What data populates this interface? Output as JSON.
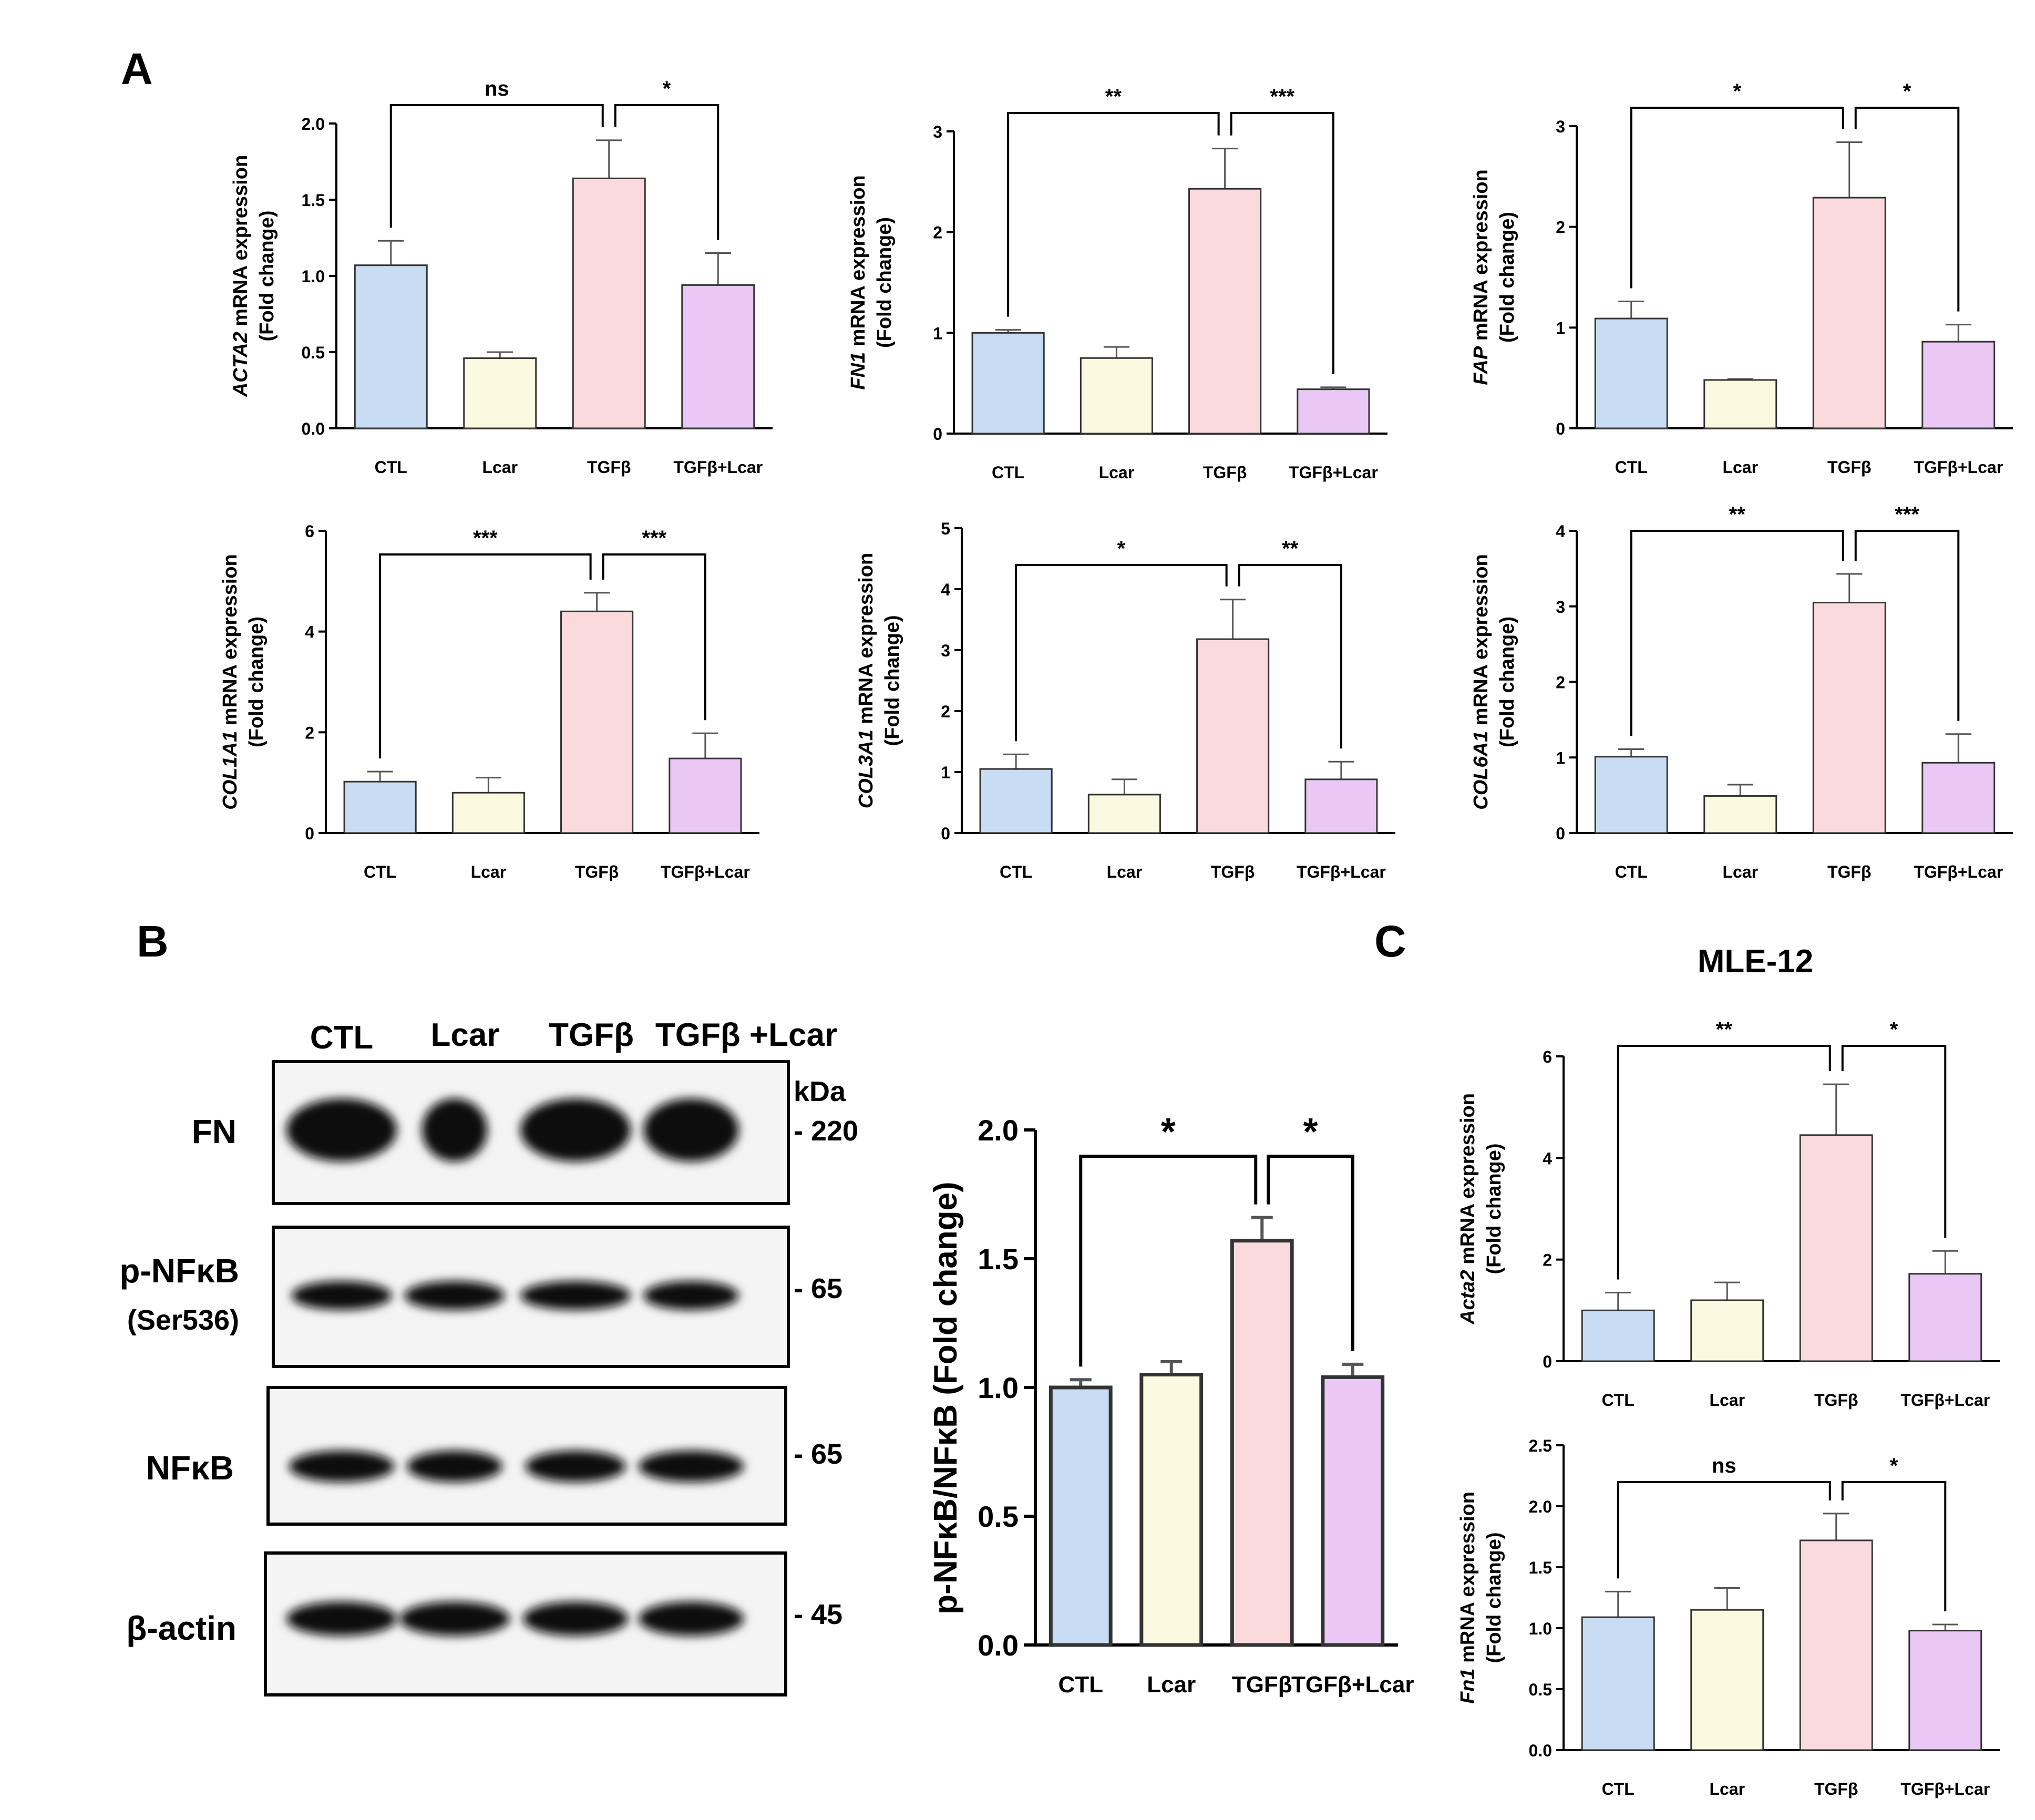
{
  "figure": {
    "panel_labels": {
      "a": "A",
      "b": "B",
      "c": "C"
    },
    "colors": {
      "CTL": "#c8dcf4",
      "Lcar": "#fbfae0",
      "TGFb": "#fadadd",
      "TGFbLcar": "#e9c8f5"
    }
  },
  "chart_data": [
    {
      "id": "A1",
      "type": "bar",
      "gene": "ACTA2",
      "ylabel_rest": " mRNA expression",
      "ylabel2": "(Fold change)",
      "categories": [
        "CTL",
        "Lcar",
        "TGFβ",
        "TGFβ+Lcar"
      ],
      "values": [
        1.07,
        0.46,
        1.64,
        0.94
      ],
      "errors": [
        0.16,
        0.04,
        0.25,
        0.21
      ],
      "yticks": [
        "0.0",
        "0.5",
        "1.0",
        "1.5",
        "2.0"
      ],
      "ylim": [
        0,
        2.0
      ],
      "significance": [
        {
          "from": 0,
          "to": 2,
          "label": "ns"
        },
        {
          "from": 2,
          "to": 3,
          "label": "*"
        }
      ]
    },
    {
      "id": "A2",
      "type": "bar",
      "gene": "FN1",
      "ylabel_rest": " mRNA expression",
      "ylabel2": "(Fold change)",
      "categories": [
        "CTL",
        "Lcar",
        "TGFβ",
        "TGFβ+Lcar"
      ],
      "values": [
        1.0,
        0.75,
        2.43,
        0.44
      ],
      "errors": [
        0.03,
        0.11,
        0.4,
        0.02
      ],
      "yticks": [
        "0",
        "1",
        "2",
        "3"
      ],
      "ylim": [
        0,
        3
      ],
      "significance": [
        {
          "from": 0,
          "to": 2,
          "label": "**"
        },
        {
          "from": 2,
          "to": 3,
          "label": "***"
        }
      ]
    },
    {
      "id": "A3",
      "type": "bar",
      "gene": "FAP",
      "ylabel_rest": " mRNA expression",
      "ylabel2": "(Fold change)",
      "categories": [
        "CTL",
        "Lcar",
        "TGFβ",
        "TGFβ+Lcar"
      ],
      "values": [
        1.09,
        0.48,
        2.29,
        0.86
      ],
      "errors": [
        0.17,
        0.01,
        0.55,
        0.17
      ],
      "yticks": [
        "0",
        "1",
        "2",
        "3"
      ],
      "ylim": [
        0,
        3
      ],
      "significance": [
        {
          "from": 0,
          "to": 2,
          "label": "*"
        },
        {
          "from": 2,
          "to": 3,
          "label": "*"
        }
      ]
    },
    {
      "id": "A4",
      "type": "bar",
      "gene": "COL1A1",
      "ylabel_rest": " mRNA expression",
      "ylabel2": "(Fold change)",
      "categories": [
        "CTL",
        "Lcar",
        "TGFβ",
        "TGFβ+Lcar"
      ],
      "values": [
        1.02,
        0.8,
        4.4,
        1.48
      ],
      "errors": [
        0.2,
        0.3,
        0.37,
        0.5
      ],
      "yticks": [
        "0",
        "2",
        "4",
        "6"
      ],
      "ylim": [
        0,
        6
      ],
      "significance": [
        {
          "from": 0,
          "to": 2,
          "label": "***"
        },
        {
          "from": 2,
          "to": 3,
          "label": "***"
        }
      ]
    },
    {
      "id": "A5",
      "type": "bar",
      "gene": "COL3A1",
      "ylabel_rest": " mRNA expression",
      "ylabel2": "(Fold change)",
      "categories": [
        "CTL",
        "Lcar",
        "TGFβ",
        "TGFβ+Lcar"
      ],
      "values": [
        1.05,
        0.63,
        3.18,
        0.88
      ],
      "errors": [
        0.24,
        0.25,
        0.65,
        0.29
      ],
      "yticks": [
        "0",
        "1",
        "2",
        "3",
        "4",
        "5"
      ],
      "ylim": [
        0,
        5
      ],
      "significance": [
        {
          "from": 0,
          "to": 2,
          "label": "*"
        },
        {
          "from": 2,
          "to": 3,
          "label": "**"
        }
      ]
    },
    {
      "id": "A6",
      "type": "bar",
      "gene": "COL6A1",
      "ylabel_rest": " mRNA expression",
      "ylabel2": "(Fold change)",
      "categories": [
        "CTL",
        "Lcar",
        "TGFβ",
        "TGFβ+Lcar"
      ],
      "values": [
        1.01,
        0.49,
        3.05,
        0.93
      ],
      "errors": [
        0.1,
        0.15,
        0.38,
        0.38
      ],
      "yticks": [
        "0",
        "1",
        "2",
        "3",
        "4"
      ],
      "ylim": [
        0,
        4
      ],
      "significance": [
        {
          "from": 0,
          "to": 2,
          "label": "**"
        },
        {
          "from": 2,
          "to": 3,
          "label": "***"
        }
      ]
    },
    {
      "id": "B",
      "type": "bar",
      "ylabel": "p-NFκB/NFκB (Fold change)",
      "categories": [
        "CTL",
        "Lcar",
        "TGFβ",
        "TGFβ+Lcar"
      ],
      "values": [
        1.0,
        1.05,
        1.57,
        1.04
      ],
      "errors": [
        0.03,
        0.05,
        0.09,
        0.05
      ],
      "yticks": [
        "0.0",
        "0.5",
        "1.0",
        "1.5",
        "2.0"
      ],
      "ylim": [
        0,
        2.0
      ],
      "significance": [
        {
          "from": 0,
          "to": 2,
          "label": "*"
        },
        {
          "from": 2,
          "to": 3,
          "label": "*"
        }
      ]
    },
    {
      "id": "C1",
      "type": "bar",
      "title": "MLE-12",
      "gene": "Acta2",
      "ylabel_rest": " mRNA expression",
      "ylabel2": "(Fold change)",
      "categories": [
        "CTL",
        "Lcar",
        "TGFβ",
        "TGFβ+Lcar"
      ],
      "values": [
        1.0,
        1.2,
        4.45,
        1.72
      ],
      "errors": [
        0.35,
        0.35,
        1.0,
        0.45
      ],
      "yticks": [
        "0",
        "2",
        "4",
        "6"
      ],
      "ylim": [
        0,
        6
      ],
      "significance": [
        {
          "from": 0,
          "to": 2,
          "label": "**"
        },
        {
          "from": 2,
          "to": 3,
          "label": "*"
        }
      ]
    },
    {
      "id": "C2",
      "type": "bar",
      "gene": "Fn1",
      "ylabel_rest": " mRNA expression",
      "ylabel2": "(Fold change)",
      "categories": [
        "CTL",
        "Lcar",
        "TGFβ",
        "TGFβ+Lcar"
      ],
      "values": [
        1.09,
        1.15,
        1.72,
        0.98
      ],
      "errors": [
        0.21,
        0.18,
        0.22,
        0.05
      ],
      "yticks": [
        "0.0",
        "0.5",
        "1.0",
        "1.5",
        "2.0",
        "2.5"
      ],
      "ylim": [
        0,
        2.5
      ],
      "significance": [
        {
          "from": 0,
          "to": 2,
          "label": "ns"
        },
        {
          "from": 2,
          "to": 3,
          "label": "*"
        }
      ]
    }
  ],
  "western_blot": {
    "lanes": [
      "CTL",
      "Lcar",
      "TGFβ",
      "TGFβ +Lcar"
    ],
    "kda_header": "kDa",
    "rows": [
      {
        "name": "FN",
        "sub": "",
        "kda": "- 220"
      },
      {
        "name": "p-NFκB",
        "sub": "(Ser536)",
        "kda": "- 65"
      },
      {
        "name": "NFκB",
        "sub": "",
        "kda": "- 65"
      },
      {
        "name": "β-actin",
        "sub": "",
        "kda": "- 45"
      }
    ]
  }
}
